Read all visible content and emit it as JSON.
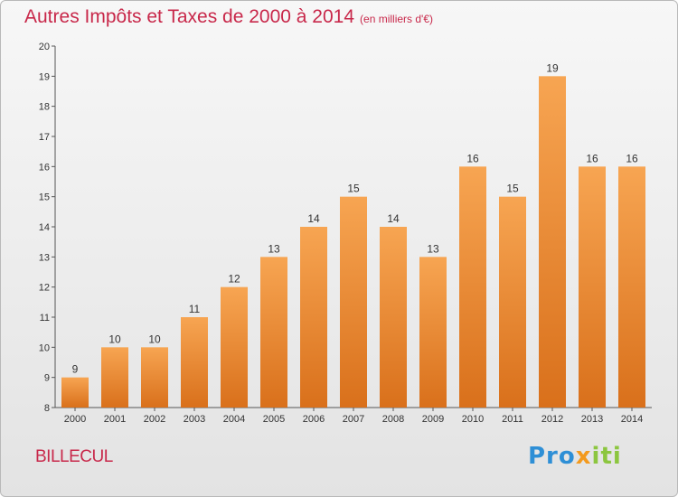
{
  "title": "Autres Impôts et Taxes de 2000 à 2014",
  "unit": "(en milliers d'€)",
  "commune": "BILLECUL",
  "logo": {
    "text": "Proxiti",
    "part1": "Pro",
    "part2": "x",
    "part3": "iti"
  },
  "colors": {
    "bar_top": "#f7a552",
    "bar_bottom": "#d9701b",
    "title": "#c8284a",
    "logo_blue": "#2e8fd6",
    "logo_orange": "#f39a1e",
    "logo_green": "#8cc63f"
  },
  "chart_data": {
    "type": "bar",
    "title": "Autres Impôts et Taxes de 2000 à 2014",
    "subtitle": "(en milliers d'€)",
    "xlabel": "",
    "ylabel": "",
    "categories": [
      "2000",
      "2001",
      "2002",
      "2003",
      "2004",
      "2005",
      "2006",
      "2007",
      "2008",
      "2009",
      "2010",
      "2011",
      "2012",
      "2013",
      "2014"
    ],
    "values": [
      9,
      10,
      10,
      11,
      12,
      13,
      14,
      15,
      14,
      13,
      16,
      15,
      19,
      16,
      16
    ],
    "ylim": [
      8,
      20
    ],
    "yticks": [
      8,
      9,
      10,
      11,
      12,
      13,
      14,
      15,
      16,
      17,
      18,
      19,
      20
    ],
    "grid": false,
    "legend": "none"
  }
}
